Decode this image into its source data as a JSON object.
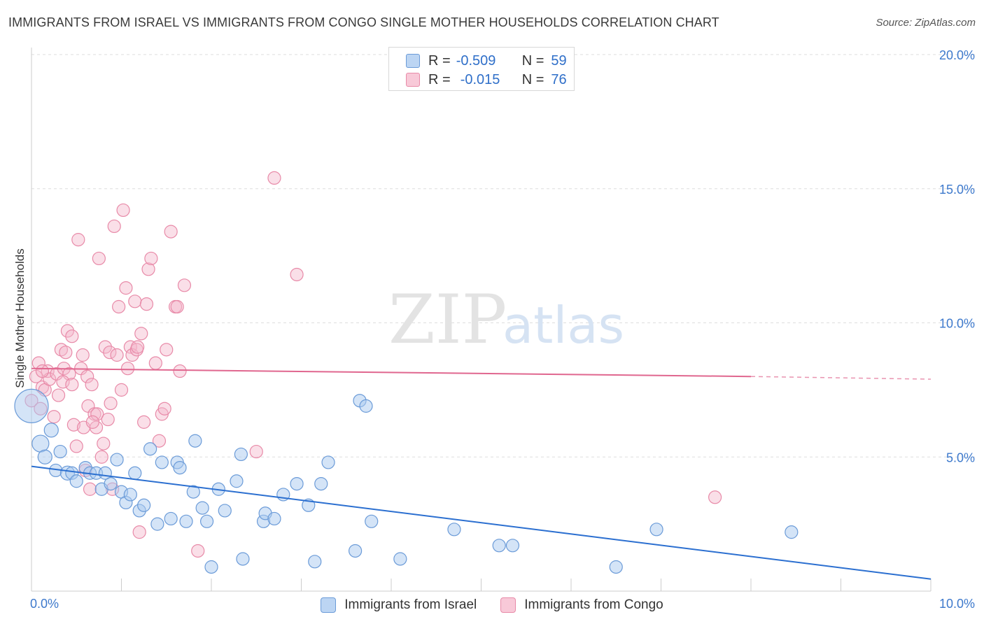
{
  "title": "IMMIGRANTS FROM ISRAEL VS IMMIGRANTS FROM CONGO SINGLE MOTHER HOUSEHOLDS CORRELATION CHART",
  "source": "Source: ZipAtlas.com",
  "watermark": {
    "zip": "ZIP",
    "atlas": "atlas"
  },
  "legend": {
    "israel": {
      "r_label": "R =",
      "r_value": "-0.509",
      "n_label": "N =",
      "n_value": "59"
    },
    "congo": {
      "r_label": "R =",
      "r_value": "-0.015",
      "n_label": "N =",
      "n_value": "76"
    }
  },
  "chart_data": {
    "type": "scatter",
    "title": "IMMIGRANTS FROM ISRAEL VS IMMIGRANTS FROM CONGO SINGLE MOTHER HOUSEHOLDS CORRELATION CHART",
    "xlabel": "",
    "ylabel": "Single Mother Households",
    "xlim": [
      0,
      10
    ],
    "ylim": [
      0,
      20.5
    ],
    "x_tick_labels": [
      "0.0%",
      "10.0%"
    ],
    "y_ticks": [
      5,
      10,
      15,
      20
    ],
    "y_tick_labels": [
      "5.0%",
      "10.0%",
      "15.0%",
      "20.0%"
    ],
    "grid": true,
    "legend_position": "top-center",
    "colors": {
      "israel_fill": "#a9c9ef",
      "israel_stroke": "#6b9bd8",
      "israel_line": "#2b6fd0",
      "congo_fill": "#f5b8cb",
      "congo_stroke": "#e88aa8",
      "congo_line": "#e0678f"
    },
    "series": [
      {
        "name": "Immigrants from Israel",
        "color": "#6b9bd8",
        "r": -0.509,
        "n": 59,
        "trend": {
          "x0": 0,
          "y0": 4.65,
          "x1": 10,
          "y1": 0.45
        },
        "points": [
          [
            0.0,
            6.9,
            24
          ],
          [
            0.1,
            5.5,
            12
          ],
          [
            0.15,
            5.0,
            10
          ],
          [
            0.22,
            6.0,
            10
          ],
          [
            0.27,
            4.5,
            9
          ],
          [
            0.32,
            5.2,
            9
          ],
          [
            0.4,
            4.4,
            10
          ],
          [
            0.45,
            4.4,
            9
          ],
          [
            0.5,
            4.1,
            9
          ],
          [
            0.6,
            4.6,
            9
          ],
          [
            0.65,
            4.4,
            9
          ],
          [
            0.72,
            4.4,
            9
          ],
          [
            0.78,
            3.8,
            9
          ],
          [
            0.82,
            4.4,
            9
          ],
          [
            0.88,
            4.0,
            9
          ],
          [
            0.95,
            4.9,
            9
          ],
          [
            1.0,
            3.7,
            9
          ],
          [
            1.05,
            3.3,
            9
          ],
          [
            1.1,
            3.6,
            9
          ],
          [
            1.15,
            4.4,
            9
          ],
          [
            1.2,
            3.0,
            9
          ],
          [
            1.25,
            3.2,
            9
          ],
          [
            1.32,
            5.3,
            9
          ],
          [
            1.4,
            2.5,
            9
          ],
          [
            1.45,
            4.8,
            9
          ],
          [
            1.55,
            2.7,
            9
          ],
          [
            1.62,
            4.8,
            9
          ],
          [
            1.65,
            4.6,
            9
          ],
          [
            1.72,
            2.6,
            9
          ],
          [
            1.8,
            3.7,
            9
          ],
          [
            1.82,
            5.6,
            9
          ],
          [
            1.9,
            3.1,
            9
          ],
          [
            1.95,
            2.6,
            9
          ],
          [
            2.0,
            0.9,
            9
          ],
          [
            2.08,
            3.8,
            9
          ],
          [
            2.15,
            3.0,
            9
          ],
          [
            2.28,
            4.1,
            9
          ],
          [
            2.33,
            5.1,
            9
          ],
          [
            2.35,
            1.2,
            9
          ],
          [
            2.58,
            2.6,
            9
          ],
          [
            2.6,
            2.9,
            9
          ],
          [
            2.7,
            2.7,
            9
          ],
          [
            2.8,
            3.6,
            9
          ],
          [
            2.95,
            4.0,
            9
          ],
          [
            3.08,
            3.2,
            9
          ],
          [
            3.15,
            1.1,
            9
          ],
          [
            3.22,
            4.0,
            9
          ],
          [
            3.3,
            4.8,
            9
          ],
          [
            3.6,
            1.5,
            9
          ],
          [
            3.65,
            7.1,
            9
          ],
          [
            3.72,
            6.9,
            9
          ],
          [
            3.78,
            2.6,
            9
          ],
          [
            4.1,
            1.2,
            9
          ],
          [
            4.7,
            2.3,
            9
          ],
          [
            5.2,
            1.7,
            9
          ],
          [
            5.35,
            1.7,
            9
          ],
          [
            6.5,
            0.9,
            9
          ],
          [
            6.95,
            2.3,
            9
          ],
          [
            8.45,
            2.2,
            9
          ]
        ]
      },
      {
        "name": "Immigrants from Congo",
        "color": "#e88aa8",
        "r": -0.015,
        "n": 76,
        "trend": {
          "x0": 0,
          "y0": 8.3,
          "x1": 8.0,
          "y1": 8.0,
          "dash_to_x": 10,
          "dash_to_y": 7.9
        },
        "points": [
          [
            0.0,
            7.1,
            9
          ],
          [
            0.05,
            8.0,
            9
          ],
          [
            0.08,
            8.5,
            9
          ],
          [
            0.1,
            6.8,
            9
          ],
          [
            0.12,
            7.6,
            9
          ],
          [
            0.15,
            7.5,
            9
          ],
          [
            0.18,
            8.2,
            9
          ],
          [
            0.2,
            7.9,
            9
          ],
          [
            0.25,
            6.5,
            9
          ],
          [
            0.28,
            8.1,
            9
          ],
          [
            0.3,
            7.3,
            9
          ],
          [
            0.33,
            9.0,
            9
          ],
          [
            0.36,
            8.3,
            9
          ],
          [
            0.38,
            8.9,
            9
          ],
          [
            0.4,
            9.7,
            9
          ],
          [
            0.42,
            8.1,
            9
          ],
          [
            0.45,
            9.5,
            9
          ],
          [
            0.47,
            6.2,
            9
          ],
          [
            0.5,
            5.4,
            9
          ],
          [
            0.52,
            13.1,
            9
          ],
          [
            0.55,
            8.3,
            9
          ],
          [
            0.57,
            8.8,
            9
          ],
          [
            0.6,
            4.5,
            9
          ],
          [
            0.62,
            8.0,
            9
          ],
          [
            0.63,
            6.9,
            9
          ],
          [
            0.65,
            3.8,
            9
          ],
          [
            0.67,
            7.7,
            9
          ],
          [
            0.7,
            6.6,
            9
          ],
          [
            0.72,
            6.1,
            9
          ],
          [
            0.73,
            6.6,
            9
          ],
          [
            0.75,
            12.4,
            9
          ],
          [
            0.78,
            5.0,
            9
          ],
          [
            0.8,
            5.5,
            9
          ],
          [
            0.82,
            9.1,
            9
          ],
          [
            0.85,
            6.4,
            9
          ],
          [
            0.87,
            8.9,
            9
          ],
          [
            0.9,
            3.8,
            9
          ],
          [
            0.92,
            13.6,
            9
          ],
          [
            0.95,
            8.8,
            9
          ],
          [
            0.97,
            10.6,
            9
          ],
          [
            1.0,
            7.5,
            9
          ],
          [
            1.02,
            14.2,
            9
          ],
          [
            1.05,
            11.3,
            9
          ],
          [
            1.07,
            8.3,
            9
          ],
          [
            1.1,
            9.1,
            9
          ],
          [
            1.12,
            8.8,
            9
          ],
          [
            1.15,
            10.8,
            9
          ],
          [
            1.17,
            9.0,
            9
          ],
          [
            1.2,
            2.2,
            9
          ],
          [
            1.22,
            9.6,
            9
          ],
          [
            1.25,
            6.3,
            9
          ],
          [
            1.28,
            10.7,
            9
          ],
          [
            1.3,
            12.0,
            9
          ],
          [
            1.33,
            12.4,
            9
          ],
          [
            1.38,
            8.5,
            9
          ],
          [
            1.42,
            5.6,
            9
          ],
          [
            1.45,
            6.6,
            9
          ],
          [
            1.48,
            6.8,
            9
          ],
          [
            1.5,
            9.0,
            9
          ],
          [
            1.55,
            13.4,
            9
          ],
          [
            1.6,
            10.6,
            9
          ],
          [
            1.62,
            10.6,
            9
          ],
          [
            1.65,
            8.2,
            9
          ],
          [
            1.7,
            11.4,
            9
          ],
          [
            1.85,
            1.5,
            9
          ],
          [
            2.5,
            5.2,
            9
          ],
          [
            2.7,
            15.4,
            9
          ],
          [
            2.95,
            11.8,
            9
          ],
          [
            7.6,
            3.5,
            9
          ],
          [
            0.12,
            8.2,
            9
          ],
          [
            0.35,
            7.8,
            9
          ],
          [
            0.58,
            6.1,
            9
          ],
          [
            0.68,
            6.3,
            9
          ],
          [
            0.88,
            7.0,
            9
          ],
          [
            1.18,
            9.1,
            9
          ],
          [
            0.45,
            7.7,
            9
          ]
        ]
      }
    ]
  },
  "bottom_legend": {
    "israel": "Immigrants from Israel",
    "congo": "Immigrants from Congo"
  }
}
